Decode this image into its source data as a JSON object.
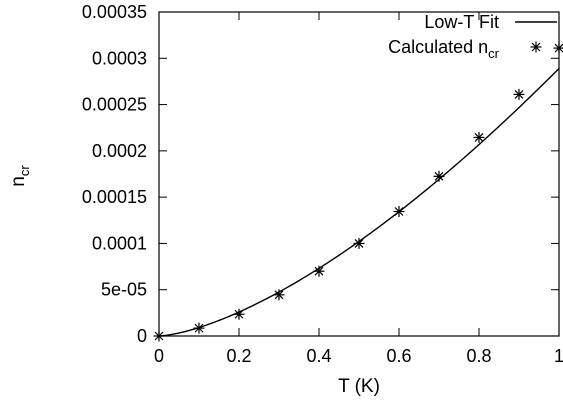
{
  "chart_data": {
    "type": "scatter",
    "xlabel": "T (K)",
    "ylabel": {
      "main": "n",
      "sub": "cr"
    },
    "xlim": [
      0,
      1
    ],
    "ylim": [
      0,
      0.00035
    ],
    "x_ticks": [
      0,
      0.2,
      0.4,
      0.6,
      0.8,
      1
    ],
    "x_tick_labels": [
      "0",
      "0.2",
      "0.4",
      "0.6",
      "0.8",
      "1"
    ],
    "y_ticks": [
      0,
      5e-05,
      0.0001,
      0.00015,
      0.0002,
      0.00025,
      0.0003,
      0.00035
    ],
    "y_tick_labels": [
      "0",
      "5e-05",
      "0.0001",
      "0.00015",
      "0.0002",
      "0.00025",
      "0.0003",
      "0.00035"
    ],
    "grid": false,
    "legend_position": "top-right",
    "series": [
      {
        "name": "Low-T Fit",
        "kind": "line",
        "color": "#000000",
        "model": "power_law",
        "coefficient": 0.000289,
        "exponent": 1.5
      },
      {
        "name": {
          "main": "Calculated n",
          "sub": "cr"
        },
        "kind": "points",
        "marker": "asterisk",
        "color": "#000000",
        "x": [
          0,
          0.1,
          0.2,
          0.3,
          0.4,
          0.5,
          0.6,
          0.7,
          0.8,
          0.9,
          1.0
        ],
        "y": [
          0,
          8.5e-06,
          2.35e-05,
          4.45e-05,
          7e-05,
          0.0001,
          0.0001345,
          0.0001725,
          0.0002145,
          0.000261,
          0.000311
        ]
      }
    ]
  },
  "colors": {
    "axis": "#000000",
    "background": "#ffffff"
  }
}
